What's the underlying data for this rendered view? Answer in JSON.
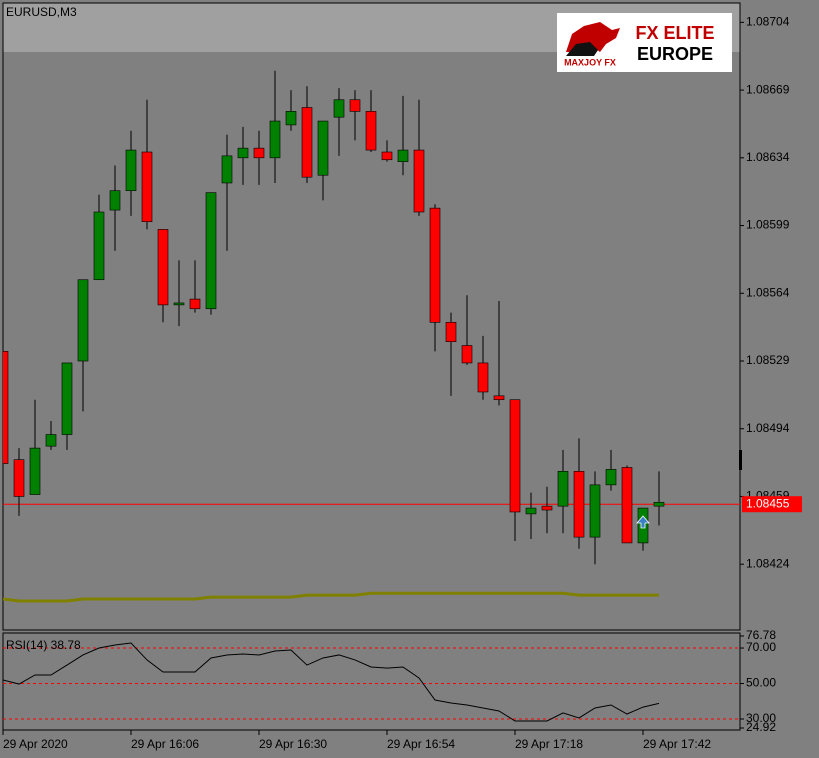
{
  "window": {
    "label": "EURUSD,M3"
  },
  "logo": {
    "title": "FX ELITE",
    "subtitle": "EUROPE",
    "brand": "MAXJOY FX"
  },
  "chart_data": [
    {
      "type": "candlestick",
      "categories": [
        "29 Apr 2020",
        null,
        null,
        null,
        null,
        null,
        null,
        null,
        "29 Apr 16:06",
        null,
        null,
        null,
        null,
        null,
        null,
        null,
        "29 Apr 16:30",
        null,
        null,
        null,
        null,
        null,
        null,
        null,
        "29 Apr 16:54",
        null,
        null,
        null,
        null,
        null,
        null,
        null,
        "29 Apr 17:18",
        null,
        null,
        null,
        null,
        null,
        null,
        null,
        "29 Apr 17:42",
        null
      ],
      "open": [
        1.08534,
        1.08478,
        1.0846,
        1.08485,
        1.08491,
        1.08529,
        1.08571,
        1.08607,
        1.08617,
        1.08637,
        1.08597,
        1.08558,
        1.08561,
        1.08556,
        1.08621,
        1.08634,
        1.08639,
        1.08634,
        1.08651,
        1.0866,
        1.08625,
        1.08655,
        1.08664,
        1.08658,
        1.08637,
        1.08632,
        1.08638,
        1.08608,
        1.08549,
        1.08537,
        1.08528,
        1.08511,
        1.08509,
        1.0845,
        1.08454,
        1.08454,
        1.08472,
        1.08438,
        1.08465,
        1.08474,
        1.08435,
        1.08454
      ],
      "high": [
        1.08534,
        1.08484,
        1.08509,
        1.08498,
        1.08528,
        1.08571,
        1.08615,
        1.0863,
        1.08648,
        1.08664,
        1.08597,
        1.08581,
        1.08581,
        1.08616,
        1.08646,
        1.0865,
        1.08648,
        1.08679,
        1.08669,
        1.08671,
        1.08653,
        1.0867,
        1.08669,
        1.08669,
        1.08643,
        1.08666,
        1.08664,
        1.0861,
        1.08554,
        1.08563,
        1.08542,
        1.0856,
        1.08509,
        1.08461,
        1.08464,
        1.08483,
        1.08489,
        1.08472,
        1.08483,
        1.08475,
        1.08453,
        1.08472
      ],
      "low": [
        1.08476,
        1.08449,
        1.0846,
        1.08483,
        1.08483,
        1.08503,
        1.08571,
        1.08586,
        1.08604,
        1.08597,
        1.08549,
        1.08547,
        1.08554,
        1.08553,
        1.08586,
        1.0862,
        1.0862,
        1.08621,
        1.08648,
        1.08621,
        1.08612,
        1.08635,
        1.08643,
        1.08637,
        1.08632,
        1.08625,
        1.08604,
        1.08534,
        1.08511,
        1.08527,
        1.08509,
        1.08506,
        1.08436,
        1.08437,
        1.0844,
        1.0844,
        1.08432,
        1.08424,
        1.08462,
        1.08435,
        1.08431,
        1.08444
      ],
      "close": [
        1.08476,
        1.08459,
        1.08484,
        1.08491,
        1.08528,
        1.08571,
        1.08606,
        1.08617,
        1.08638,
        1.08601,
        1.08558,
        1.08559,
        1.08556,
        1.08616,
        1.08635,
        1.08639,
        1.08634,
        1.08653,
        1.08658,
        1.08624,
        1.08653,
        1.08664,
        1.08658,
        1.08638,
        1.08633,
        1.08638,
        1.08606,
        1.08549,
        1.08539,
        1.08528,
        1.08513,
        1.08509,
        1.08451,
        1.08453,
        1.08452,
        1.08472,
        1.08438,
        1.08465,
        1.08473,
        1.08435,
        1.08453,
        1.08456
      ],
      "colors": {
        "up": "#008000",
        "down": "#ff0000",
        "wick": "#000000"
      },
      "moving_average": {
        "color": "#808000",
        "values": [
          1.08406,
          1.08405,
          1.08405,
          1.08405,
          1.08405,
          1.08406,
          1.08406,
          1.08406,
          1.08406,
          1.08406,
          1.08406,
          1.08406,
          1.08406,
          1.08407,
          1.08407,
          1.08407,
          1.08407,
          1.08407,
          1.08407,
          1.08408,
          1.08408,
          1.08408,
          1.08408,
          1.08409,
          1.08409,
          1.08409,
          1.08409,
          1.08409,
          1.08409,
          1.08409,
          1.08409,
          1.08409,
          1.08409,
          1.08409,
          1.08409,
          1.08409,
          1.08408,
          1.08408,
          1.08408,
          1.08408,
          1.08408,
          1.08408
        ]
      },
      "price_line": {
        "value": 1.08455,
        "color": "#ff0000"
      },
      "ylim": [
        1.0839,
        1.08714
      ],
      "yticks": [
        1.08704,
        1.08669,
        1.08634,
        1.08599,
        1.08564,
        1.08529,
        1.08494,
        1.08459,
        1.08424
      ]
    },
    {
      "type": "line",
      "title": "RSI(14) 38.78",
      "color": "#000000",
      "values": [
        52.0,
        49.7,
        54.8,
        54.8,
        60.4,
        66.1,
        70.0,
        71.7,
        72.8,
        63.3,
        56.5,
        56.5,
        56.5,
        64.4,
        66.1,
        66.6,
        66.1,
        68.3,
        68.9,
        60.4,
        64.4,
        66.1,
        63.3,
        59.3,
        58.7,
        59.3,
        53.1,
        40.7,
        39.0,
        37.9,
        36.2,
        34.5,
        28.9,
        28.9,
        28.9,
        33.4,
        30.6,
        36.2,
        37.9,
        32.8,
        36.7,
        38.78
      ],
      "levels": [
        70,
        50,
        30
      ],
      "level_color": "#ff0000",
      "ylim": [
        24.92,
        76.78
      ],
      "yticks": [
        76.78,
        {
          "value": 70,
          "label": "70.00"
        },
        {
          "value": 50,
          "label": "50.00"
        },
        {
          "value": 30,
          "label": "30.00"
        },
        24.92
      ]
    }
  ]
}
